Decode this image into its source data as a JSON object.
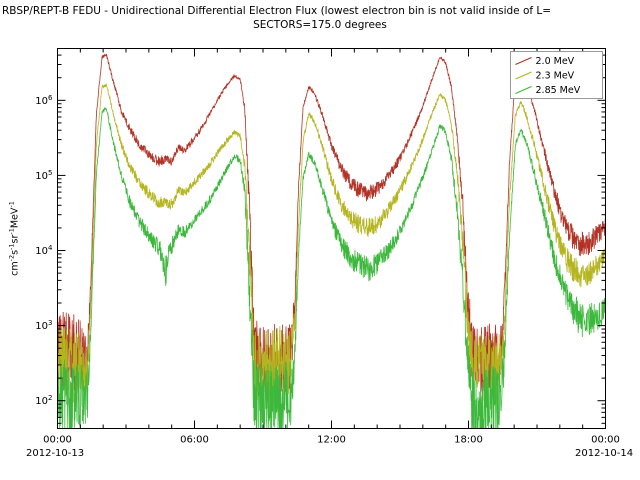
{
  "chart_data": {
    "type": "line",
    "title": "RBSP/REPT-B  FEDU - Unidirectional Differential Electron Flux (lowest electron bin is not valid inside of L=",
    "subtitle": "SECTORS=175.0 degrees",
    "x_date_left": "2012-10-13",
    "x_date_right": "2012-10-14",
    "xlim": [
      0,
      24
    ],
    "ylog_lim": [
      1.63,
      6.69
    ],
    "y_scale": "log10",
    "grid": "off",
    "legend": {
      "position": "top-right"
    },
    "x_tick_labels": [
      {
        "t": 0,
        "label": "00:00"
      },
      {
        "t": 6,
        "label": "06:00"
      },
      {
        "t": 12,
        "label": "12:00"
      },
      {
        "t": 18,
        "label": "18:00"
      },
      {
        "t": 24,
        "label": "00:00"
      }
    ],
    "y_tick_exponents": [
      2,
      3,
      4,
      5,
      6
    ],
    "y_unit_parts": [
      [
        "cm",
        "-2"
      ],
      [
        "s",
        "-1"
      ],
      [
        "sr",
        "-1"
      ],
      [
        "MeV",
        "-1"
      ]
    ],
    "points_format": "[hours since 2012-10-13 00:00 UT, log10(flux cm-2 s-1 sr-1 MeV-1), noise amplitude in decades]",
    "series": [
      {
        "name": "2.0 MeV",
        "color": "#b23226",
        "points": [
          [
            0.0,
            2.7,
            0.5
          ],
          [
            0.5,
            2.65,
            0.55
          ],
          [
            1.0,
            2.6,
            0.5
          ],
          [
            1.3,
            2.5,
            0.3
          ],
          [
            1.45,
            3.5,
            0.1
          ],
          [
            1.7,
            5.8,
            0.03
          ],
          [
            1.95,
            6.58,
            0.02
          ],
          [
            2.15,
            6.6,
            0.02
          ],
          [
            2.4,
            6.3,
            0.03
          ],
          [
            2.8,
            5.85,
            0.04
          ],
          [
            3.2,
            5.6,
            0.05
          ],
          [
            3.6,
            5.4,
            0.06
          ],
          [
            4.0,
            5.28,
            0.06
          ],
          [
            4.4,
            5.18,
            0.07
          ],
          [
            4.7,
            5.22,
            0.07
          ],
          [
            5.0,
            5.18,
            0.06
          ],
          [
            5.3,
            5.38,
            0.05
          ],
          [
            5.55,
            5.33,
            0.05
          ],
          [
            5.8,
            5.42,
            0.05
          ],
          [
            6.2,
            5.58,
            0.04
          ],
          [
            6.6,
            5.78,
            0.04
          ],
          [
            7.0,
            6.0,
            0.03
          ],
          [
            7.4,
            6.2,
            0.02
          ],
          [
            7.75,
            6.33,
            0.02
          ],
          [
            8.0,
            6.28,
            0.02
          ],
          [
            8.2,
            5.9,
            0.05
          ],
          [
            8.4,
            4.6,
            0.2
          ],
          [
            8.6,
            2.8,
            0.4
          ],
          [
            8.8,
            2.5,
            0.5
          ],
          [
            9.3,
            2.5,
            0.55
          ],
          [
            9.8,
            2.55,
            0.55
          ],
          [
            10.2,
            2.6,
            0.45
          ],
          [
            10.4,
            3.3,
            0.2
          ],
          [
            10.55,
            4.8,
            0.06
          ],
          [
            10.75,
            5.9,
            0.03
          ],
          [
            11.0,
            6.18,
            0.02
          ],
          [
            11.25,
            6.1,
            0.03
          ],
          [
            11.6,
            5.8,
            0.04
          ],
          [
            12.0,
            5.4,
            0.06
          ],
          [
            12.4,
            5.1,
            0.08
          ],
          [
            12.8,
            4.92,
            0.1
          ],
          [
            13.2,
            4.8,
            0.11
          ],
          [
            13.6,
            4.76,
            0.11
          ],
          [
            14.0,
            4.82,
            0.1
          ],
          [
            14.4,
            4.95,
            0.08
          ],
          [
            14.8,
            5.12,
            0.07
          ],
          [
            15.2,
            5.35,
            0.05
          ],
          [
            15.6,
            5.62,
            0.04
          ],
          [
            16.0,
            5.92,
            0.03
          ],
          [
            16.4,
            6.28,
            0.02
          ],
          [
            16.75,
            6.58,
            0.02
          ],
          [
            17.0,
            6.5,
            0.02
          ],
          [
            17.25,
            6.18,
            0.03
          ],
          [
            17.5,
            5.55,
            0.06
          ],
          [
            17.75,
            4.6,
            0.15
          ],
          [
            17.95,
            3.4,
            0.3
          ],
          [
            18.15,
            2.6,
            0.45
          ],
          [
            18.6,
            2.5,
            0.5
          ],
          [
            19.1,
            2.5,
            0.55
          ],
          [
            19.45,
            2.6,
            0.4
          ],
          [
            19.6,
            3.6,
            0.15
          ],
          [
            19.8,
            5.2,
            0.05
          ],
          [
            20.05,
            6.3,
            0.02
          ],
          [
            20.3,
            6.45,
            0.02
          ],
          [
            20.55,
            6.25,
            0.03
          ],
          [
            20.9,
            5.85,
            0.04
          ],
          [
            21.3,
            5.35,
            0.07
          ],
          [
            21.7,
            4.85,
            0.1
          ],
          [
            22.1,
            4.45,
            0.14
          ],
          [
            22.5,
            4.2,
            0.16
          ],
          [
            22.9,
            4.08,
            0.17
          ],
          [
            23.3,
            4.1,
            0.16
          ],
          [
            23.7,
            4.22,
            0.14
          ],
          [
            24.0,
            4.32,
            0.12
          ]
        ]
      },
      {
        "name": "2.3 MeV",
        "color": "#b5b520",
        "points": [
          [
            0.0,
            2.5,
            0.5
          ],
          [
            0.5,
            2.45,
            0.55
          ],
          [
            1.0,
            2.42,
            0.5
          ],
          [
            1.3,
            2.4,
            0.3
          ],
          [
            1.45,
            3.2,
            0.1
          ],
          [
            1.7,
            5.4,
            0.03
          ],
          [
            1.95,
            6.18,
            0.02
          ],
          [
            2.15,
            6.2,
            0.02
          ],
          [
            2.4,
            5.88,
            0.03
          ],
          [
            2.8,
            5.4,
            0.05
          ],
          [
            3.2,
            5.1,
            0.06
          ],
          [
            3.6,
            4.9,
            0.07
          ],
          [
            4.0,
            4.76,
            0.08
          ],
          [
            4.4,
            4.64,
            0.08
          ],
          [
            4.7,
            4.66,
            0.08
          ],
          [
            5.0,
            4.62,
            0.08
          ],
          [
            5.3,
            4.8,
            0.06
          ],
          [
            5.55,
            4.76,
            0.06
          ],
          [
            5.8,
            4.85,
            0.06
          ],
          [
            6.2,
            4.98,
            0.05
          ],
          [
            6.6,
            5.12,
            0.05
          ],
          [
            7.0,
            5.3,
            0.04
          ],
          [
            7.4,
            5.46,
            0.04
          ],
          [
            7.75,
            5.58,
            0.03
          ],
          [
            8.0,
            5.52,
            0.04
          ],
          [
            8.2,
            5.15,
            0.07
          ],
          [
            8.4,
            4.0,
            0.25
          ],
          [
            8.6,
            2.6,
            0.4
          ],
          [
            8.8,
            2.4,
            0.5
          ],
          [
            9.3,
            2.4,
            0.55
          ],
          [
            9.8,
            2.45,
            0.55
          ],
          [
            10.2,
            2.5,
            0.45
          ],
          [
            10.4,
            3.0,
            0.22
          ],
          [
            10.55,
            4.3,
            0.07
          ],
          [
            10.75,
            5.45,
            0.04
          ],
          [
            11.0,
            5.82,
            0.03
          ],
          [
            11.25,
            5.72,
            0.04
          ],
          [
            11.6,
            5.38,
            0.05
          ],
          [
            12.0,
            4.95,
            0.08
          ],
          [
            12.4,
            4.62,
            0.1
          ],
          [
            12.8,
            4.45,
            0.12
          ],
          [
            13.2,
            4.34,
            0.13
          ],
          [
            13.6,
            4.3,
            0.13
          ],
          [
            14.0,
            4.36,
            0.12
          ],
          [
            14.4,
            4.5,
            0.1
          ],
          [
            14.8,
            4.68,
            0.08
          ],
          [
            15.2,
            4.92,
            0.07
          ],
          [
            15.6,
            5.18,
            0.05
          ],
          [
            16.0,
            5.48,
            0.04
          ],
          [
            16.4,
            5.82,
            0.03
          ],
          [
            16.75,
            6.08,
            0.02
          ],
          [
            17.0,
            6.0,
            0.03
          ],
          [
            17.25,
            5.68,
            0.04
          ],
          [
            17.5,
            5.05,
            0.08
          ],
          [
            17.75,
            4.1,
            0.2
          ],
          [
            17.95,
            3.0,
            0.35
          ],
          [
            18.15,
            2.45,
            0.45
          ],
          [
            18.6,
            2.4,
            0.5
          ],
          [
            19.1,
            2.4,
            0.55
          ],
          [
            19.45,
            2.5,
            0.4
          ],
          [
            19.6,
            3.2,
            0.18
          ],
          [
            19.8,
            4.7,
            0.06
          ],
          [
            20.05,
            5.8,
            0.03
          ],
          [
            20.3,
            5.98,
            0.03
          ],
          [
            20.55,
            5.78,
            0.04
          ],
          [
            20.9,
            5.38,
            0.06
          ],
          [
            21.3,
            4.88,
            0.09
          ],
          [
            21.7,
            4.38,
            0.13
          ],
          [
            22.1,
            4.0,
            0.16
          ],
          [
            22.5,
            3.78,
            0.18
          ],
          [
            22.9,
            3.68,
            0.18
          ],
          [
            23.3,
            3.7,
            0.17
          ],
          [
            23.7,
            3.82,
            0.15
          ],
          [
            24.0,
            3.92,
            0.13
          ]
        ]
      },
      {
        "name": "2.85 MeV",
        "color": "#3cb83c",
        "points": [
          [
            0.0,
            2.05,
            0.55
          ],
          [
            0.5,
            2.0,
            0.55
          ],
          [
            1.0,
            1.98,
            0.55
          ],
          [
            1.3,
            2.0,
            0.35
          ],
          [
            1.45,
            2.9,
            0.12
          ],
          [
            1.7,
            5.0,
            0.04
          ],
          [
            1.95,
            5.85,
            0.03
          ],
          [
            2.15,
            5.88,
            0.03
          ],
          [
            2.4,
            5.5,
            0.04
          ],
          [
            2.8,
            5.0,
            0.06
          ],
          [
            3.2,
            4.62,
            0.08
          ],
          [
            3.6,
            4.38,
            0.09
          ],
          [
            4.0,
            4.2,
            0.1
          ],
          [
            4.4,
            4.06,
            0.12
          ],
          [
            4.6,
            3.95,
            0.18
          ],
          [
            4.75,
            3.7,
            0.3
          ],
          [
            4.9,
            4.0,
            0.14
          ],
          [
            5.1,
            4.12,
            0.1
          ],
          [
            5.3,
            4.28,
            0.08
          ],
          [
            5.55,
            4.24,
            0.08
          ],
          [
            5.8,
            4.34,
            0.07
          ],
          [
            6.2,
            4.48,
            0.06
          ],
          [
            6.6,
            4.64,
            0.06
          ],
          [
            7.0,
            4.85,
            0.05
          ],
          [
            7.4,
            5.08,
            0.04
          ],
          [
            7.75,
            5.26,
            0.04
          ],
          [
            8.0,
            5.2,
            0.05
          ],
          [
            8.2,
            4.8,
            0.09
          ],
          [
            8.4,
            3.5,
            0.3
          ],
          [
            8.6,
            2.1,
            0.45
          ],
          [
            8.8,
            1.95,
            0.55
          ],
          [
            9.3,
            1.95,
            0.55
          ],
          [
            9.8,
            1.98,
            0.55
          ],
          [
            10.2,
            2.05,
            0.5
          ],
          [
            10.4,
            2.7,
            0.25
          ],
          [
            10.55,
            3.9,
            0.08
          ],
          [
            10.75,
            4.95,
            0.04
          ],
          [
            11.0,
            5.28,
            0.04
          ],
          [
            11.25,
            5.18,
            0.05
          ],
          [
            11.6,
            4.82,
            0.07
          ],
          [
            12.0,
            4.4,
            0.1
          ],
          [
            12.4,
            4.1,
            0.13
          ],
          [
            12.8,
            3.92,
            0.15
          ],
          [
            13.2,
            3.8,
            0.17
          ],
          [
            13.6,
            3.76,
            0.18
          ],
          [
            14.0,
            3.82,
            0.15
          ],
          [
            14.4,
            3.96,
            0.12
          ],
          [
            14.8,
            4.14,
            0.1
          ],
          [
            15.2,
            4.38,
            0.08
          ],
          [
            15.6,
            4.66,
            0.06
          ],
          [
            16.0,
            4.98,
            0.05
          ],
          [
            16.4,
            5.32,
            0.04
          ],
          [
            16.75,
            5.66,
            0.03
          ],
          [
            17.0,
            5.58,
            0.04
          ],
          [
            17.25,
            5.22,
            0.06
          ],
          [
            17.5,
            4.55,
            0.12
          ],
          [
            17.75,
            3.55,
            0.28
          ],
          [
            17.95,
            2.5,
            0.4
          ],
          [
            18.15,
            2.0,
            0.5
          ],
          [
            18.6,
            1.95,
            0.55
          ],
          [
            19.1,
            1.95,
            0.55
          ],
          [
            19.45,
            2.05,
            0.45
          ],
          [
            19.6,
            2.8,
            0.2
          ],
          [
            19.8,
            4.2,
            0.07
          ],
          [
            20.05,
            5.4,
            0.04
          ],
          [
            20.3,
            5.62,
            0.03
          ],
          [
            20.55,
            5.42,
            0.05
          ],
          [
            20.9,
            5.0,
            0.07
          ],
          [
            21.3,
            4.5,
            0.11
          ],
          [
            21.7,
            3.98,
            0.15
          ],
          [
            22.1,
            3.55,
            0.2
          ],
          [
            22.5,
            3.25,
            0.23
          ],
          [
            22.9,
            3.08,
            0.24
          ],
          [
            23.3,
            3.08,
            0.22
          ],
          [
            23.7,
            3.15,
            0.2
          ],
          [
            24.0,
            3.22,
            0.18
          ]
        ]
      }
    ]
  }
}
